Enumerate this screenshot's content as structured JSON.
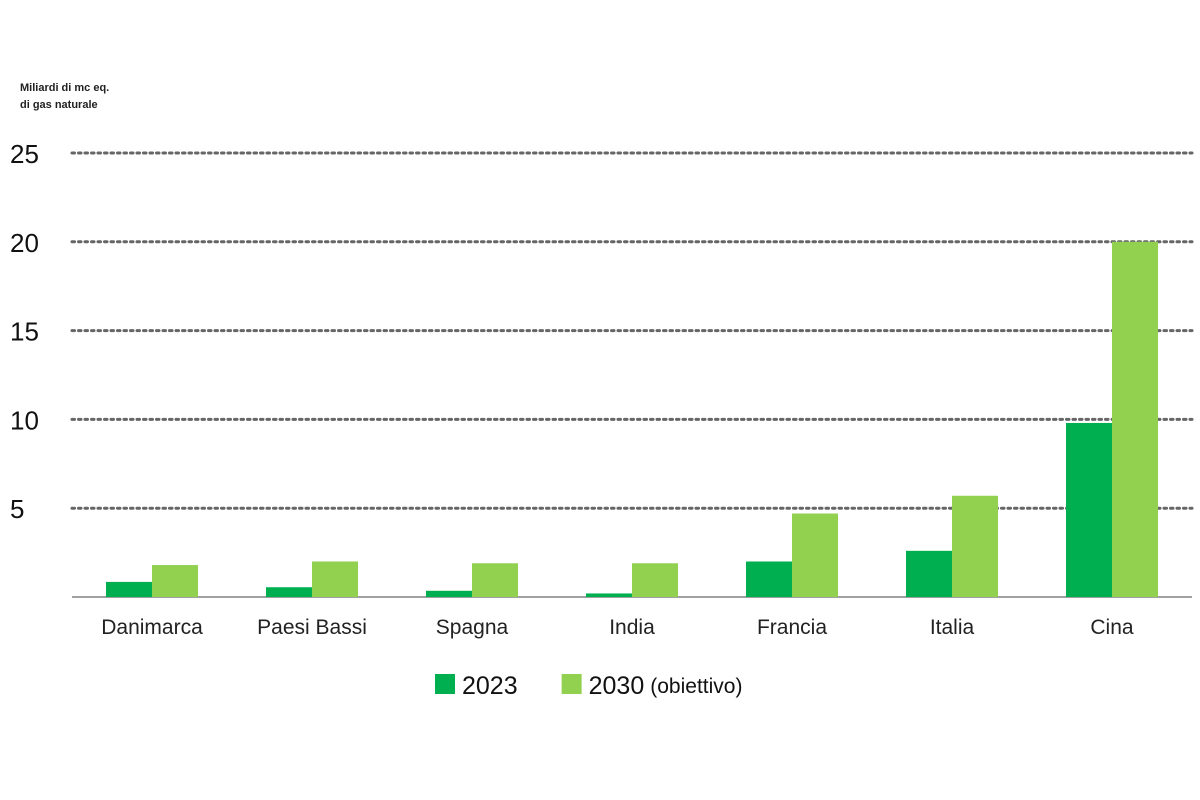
{
  "chart_data": {
    "type": "bar",
    "ylabel_line1": "Miliardi di mc eq.",
    "ylabel_line2": "di gas naturale",
    "categories": [
      "Danimarca",
      "Paesi Bassi",
      "Spagna",
      "India",
      "Francia",
      "Italia",
      "Cina"
    ],
    "series": [
      {
        "name": "2023",
        "suffix": "",
        "color": "#00b050",
        "values": [
          0.85,
          0.55,
          0.35,
          0.2,
          2.0,
          2.6,
          9.8
        ]
      },
      {
        "name": "2030",
        "suffix": "(obiettivo)",
        "color": "#92d050",
        "values": [
          1.8,
          2.0,
          1.9,
          1.9,
          4.7,
          5.7,
          20.0
        ]
      }
    ],
    "yticks": [
      5,
      10,
      15,
      20,
      25
    ],
    "ylim": [
      0,
      25
    ],
    "grid": true,
    "legend_position": "bottom"
  }
}
